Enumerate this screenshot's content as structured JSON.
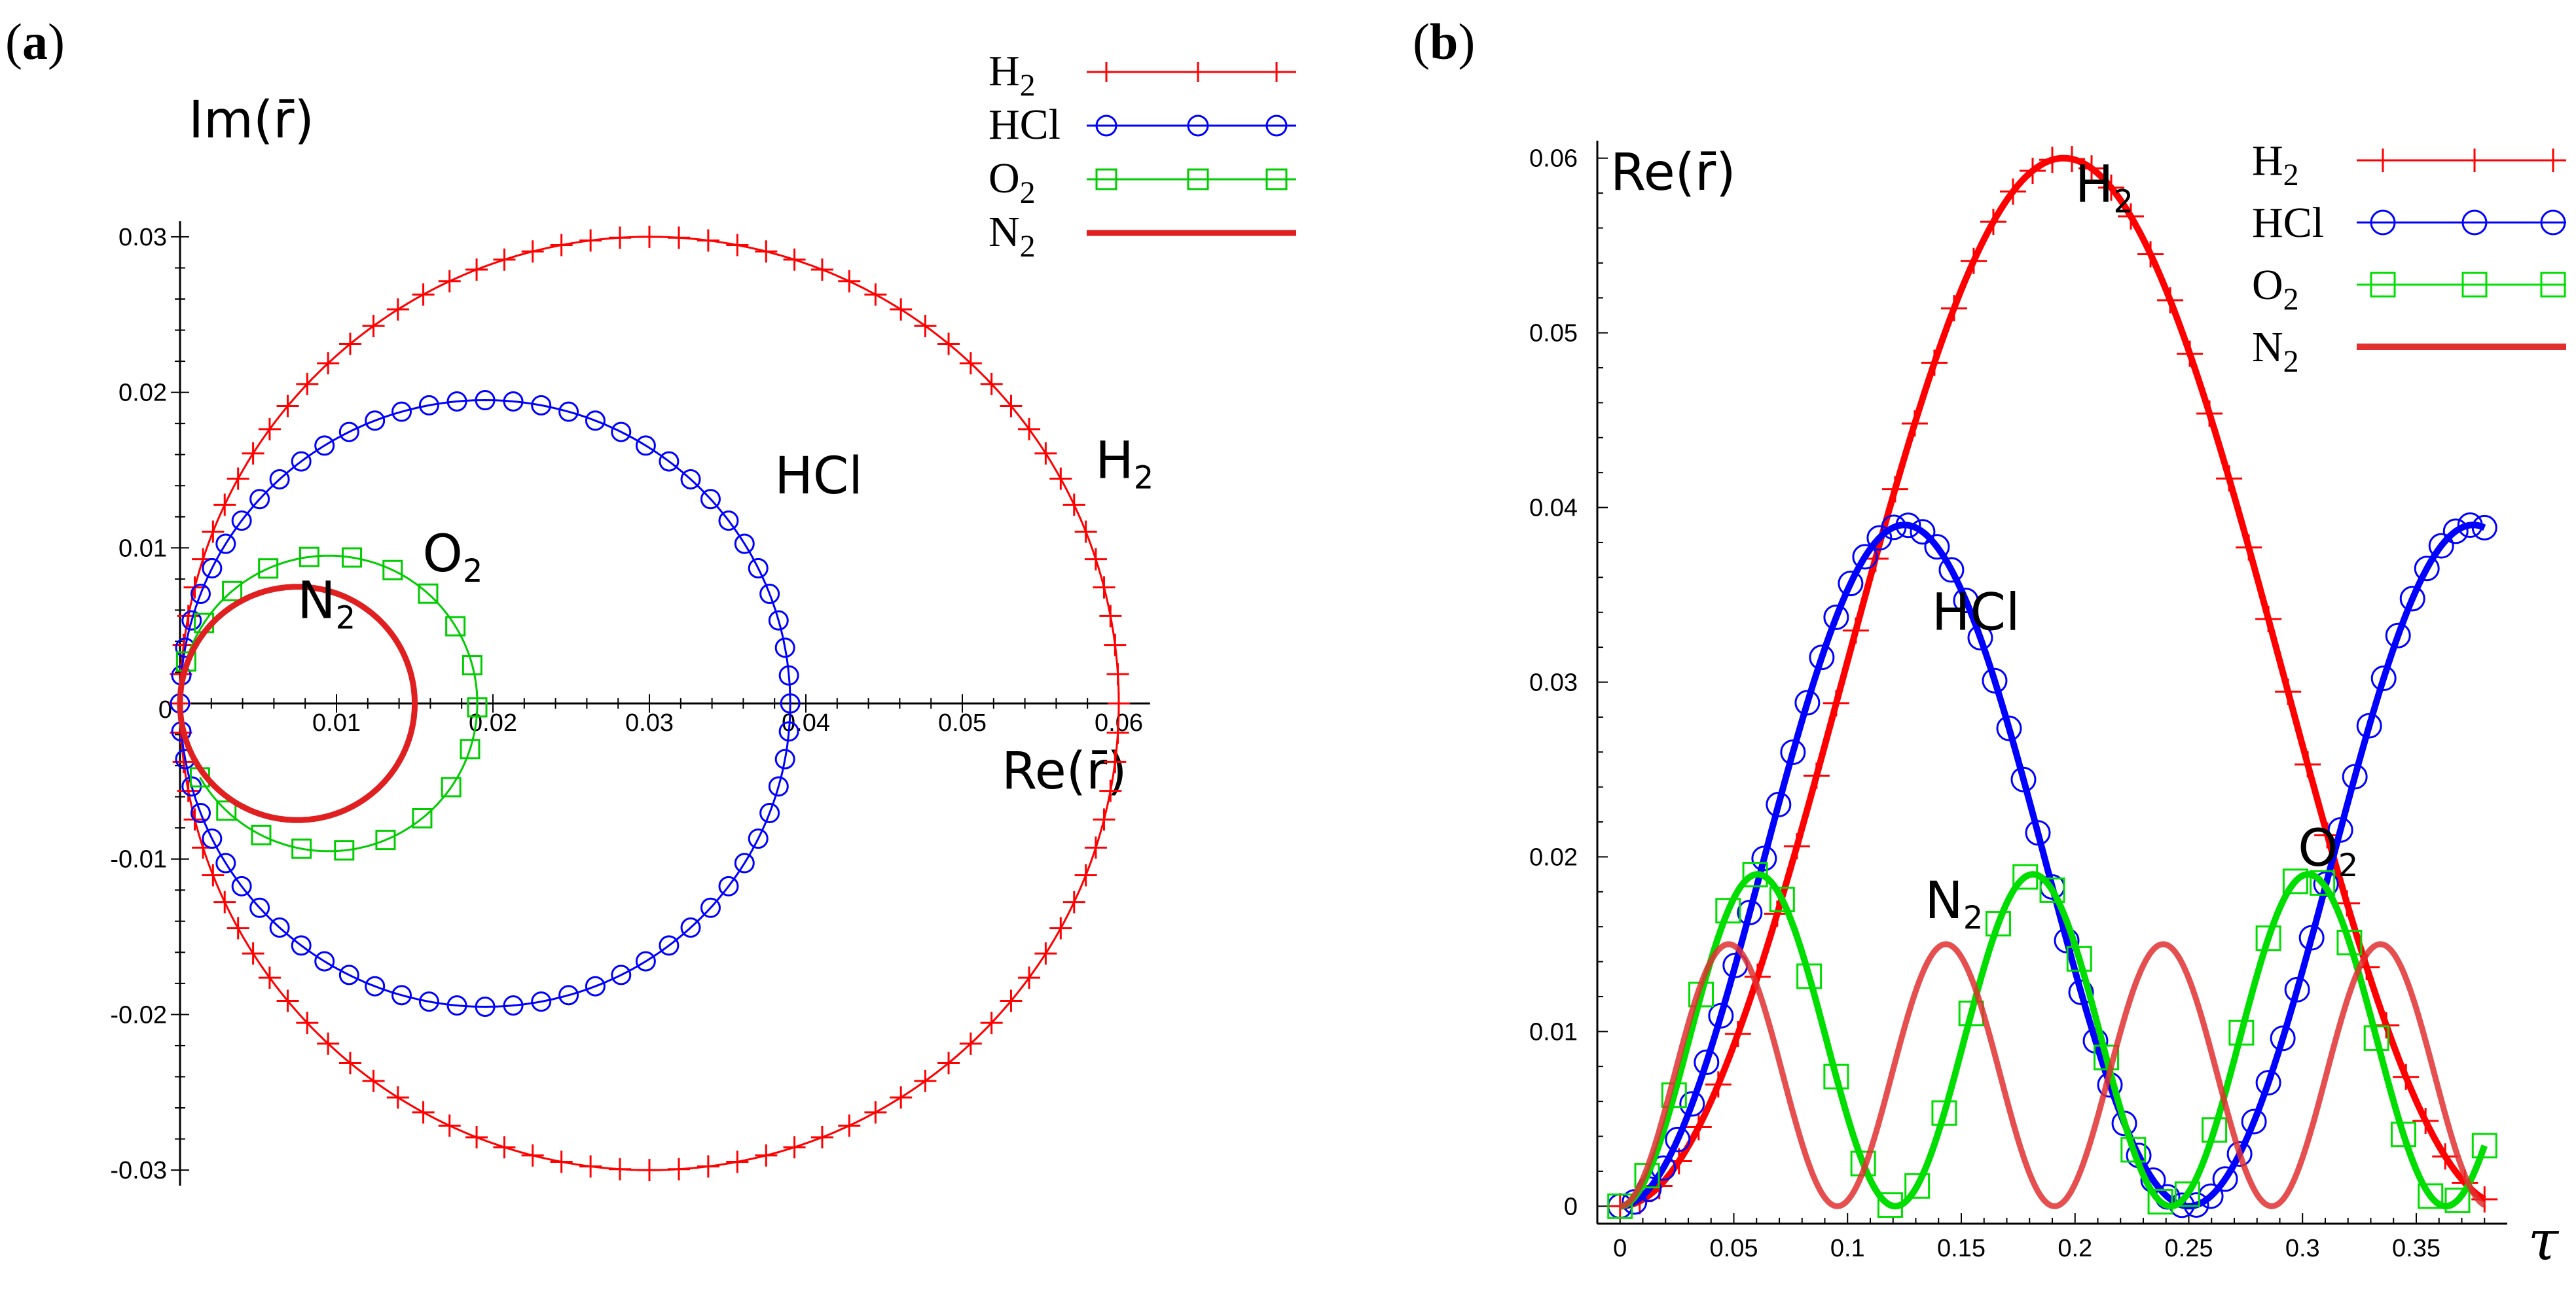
{
  "chart_data": [
    {
      "panel": "a",
      "type": "line",
      "description_kind": "parametric",
      "xlabel": "Re(r̄)",
      "ylabel": "Im(r̄)",
      "xlim": [
        0,
        0.062
      ],
      "ylim": [
        -0.031,
        0.031
      ],
      "xticks": [
        0,
        0.01,
        0.02,
        0.03,
        0.04,
        0.05,
        0.06
      ],
      "xtick_labels": [
        "0",
        "0.01",
        "0.02",
        "0.03",
        "0.04",
        "0.05",
        "0.06"
      ],
      "yticks": [
        -0.03,
        -0.02,
        -0.01,
        0.01,
        0.02,
        0.03
      ],
      "ytick_labels": [
        "-0.03",
        "-0.02",
        "-0.01",
        "0.01",
        "0.02",
        "0.03"
      ],
      "series": [
        {
          "name": "H",
          "subscript": "2",
          "color": "#ff0000",
          "marker": "plus",
          "center_re": 0.03,
          "center_im": 0,
          "radius": 0.03,
          "n_markers": 100,
          "start_deg": 0,
          "end_deg": 360
        },
        {
          "name": "HCl",
          "subscript": "",
          "color": "#0000ff",
          "marker": "circle",
          "center_re": 0.0195,
          "center_im": 0,
          "radius": 0.0195,
          "n_markers": 68,
          "start_deg": 0,
          "end_deg": 360
        },
        {
          "name": "O",
          "subscript": "2",
          "color": "#00cc00",
          "marker": "square",
          "center_re": 0.0095,
          "center_im": 0,
          "radius": 0.0095,
          "n_markers": 20,
          "start_deg": -150,
          "end_deg": 180
        },
        {
          "name": "N",
          "subscript": "2",
          "color": "#e02020",
          "marker": "none",
          "center_re": 0.0075,
          "center_im": 0,
          "radius": 0.0075,
          "n_markers": 0,
          "start_deg": 0,
          "end_deg": 360
        }
      ],
      "annotations": [
        {
          "text": "H",
          "sub": "2",
          "x": 0.0585,
          "y": 0.0145
        },
        {
          "text": "HCl",
          "sub": "",
          "x": 0.038,
          "y": 0.0135
        },
        {
          "text": "O",
          "sub": "2",
          "x": 0.0155,
          "y": 0.0085
        },
        {
          "text": "N",
          "sub": "2",
          "x": 0.0075,
          "y": 0.0055
        }
      ],
      "legend": "top-right"
    },
    {
      "panel": "b",
      "type": "line",
      "xlabel": "τ",
      "ylabel": "Re(r̄)",
      "xlim": [
        -0.01,
        0.39
      ],
      "ylim": [
        -0.001,
        0.061
      ],
      "xticks": [
        0,
        0.05,
        0.1,
        0.15,
        0.2,
        0.25,
        0.3,
        0.35
      ],
      "xtick_labels": [
        "0",
        "0.05",
        "0.1",
        "0.15",
        "0.2",
        "0.25",
        "0.3",
        "0.35"
      ],
      "yticks": [
        0,
        0.01,
        0.02,
        0.03,
        0.04,
        0.05,
        0.06
      ],
      "ytick_labels": [
        "0",
        "0.01",
        "0.02",
        "0.03",
        "0.04",
        "0.05",
        "0.06"
      ],
      "series": [
        {
          "name": "H",
          "subscript": "2",
          "color": "#ff0000",
          "marker": "plus",
          "amplitude": 0.03,
          "period": 0.39,
          "n_markers": 44
        },
        {
          "name": "HCl",
          "subscript": "",
          "color": "#0000ff",
          "marker": "circle",
          "amplitude": 0.0195,
          "period": 0.25,
          "n_markers": 60
        },
        {
          "name": "O",
          "subscript": "2",
          "color": "#00dd00",
          "marker": "square",
          "amplitude": 0.0095,
          "period": 0.121,
          "n_markers": 32
        },
        {
          "name": "N",
          "subscript": "2",
          "color": "#e03030",
          "marker": "none",
          "amplitude": 0.0075,
          "period": 0.0955,
          "n_markers": 0
        }
      ],
      "tau_max": 0.38,
      "annotations": [
        {
          "text": "H",
          "sub": "2",
          "x": 0.2,
          "y": 0.0575
        },
        {
          "text": "HCl",
          "sub": "",
          "x": 0.137,
          "y": 0.033
        },
        {
          "text": "N",
          "sub": "2",
          "x": 0.134,
          "y": 0.0165
        },
        {
          "text": "O",
          "sub": "2",
          "x": 0.298,
          "y": 0.0195
        }
      ],
      "legend": "top-right"
    }
  ],
  "panel_labels": {
    "a_open": "(",
    "a_letter": "a",
    "a_close": ")",
    "b_open": "(",
    "b_letter": "b",
    "b_close": ")"
  }
}
